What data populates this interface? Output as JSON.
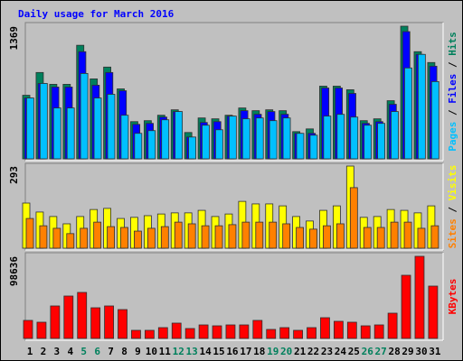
{
  "chart_data": [
    {
      "type": "bar",
      "title": "Daily usage for March 2016",
      "categories": [
        "1",
        "2",
        "3",
        "4",
        "5",
        "6",
        "7",
        "8",
        "9",
        "10",
        "11",
        "12",
        "13",
        "14",
        "15",
        "16",
        "17",
        "18",
        "19",
        "20",
        "21",
        "22",
        "23",
        "24",
        "25",
        "26",
        "27",
        "28",
        "29",
        "30",
        "31"
      ],
      "category_colors": [
        "#000000",
        "#000000",
        "#000000",
        "#000000",
        "#00805C",
        "#00805C",
        "#000000",
        "#000000",
        "#000000",
        "#000000",
        "#000000",
        "#00805C",
        "#00805C",
        "#000000",
        "#000000",
        "#000000",
        "#000000",
        "#000000",
        "#00805C",
        "#00805C",
        "#000000",
        "#000000",
        "#000000",
        "#000000",
        "#000000",
        "#00805C",
        "#00805C",
        "#000000",
        "#000000",
        "#000000",
        "#000000"
      ],
      "legend_separator": "/",
      "ylim": [
        0,
        1369
      ],
      "yticks": [
        1369
      ],
      "series": [
        {
          "name": "Hits",
          "color": "#00805C",
          "values": [
            656,
            891,
            769,
            769,
            1172,
            825,
            947,
            722,
            384,
            394,
            450,
            506,
            272,
            422,
            413,
            450,
            525,
            497,
            506,
            497,
            281,
            309,
            750,
            750,
            713,
            394,
            413,
            600,
            1369,
            1106,
            994
          ]
        },
        {
          "name": "Files",
          "color": "#0000FF",
          "values": [
            628,
            778,
            741,
            741,
            1106,
            760,
            891,
            703,
            356,
            366,
            431,
            488,
            225,
            375,
            384,
            441,
            497,
            460,
            488,
            460,
            263,
            263,
            731,
            731,
            675,
            366,
            384,
            563,
            1313,
            1078,
            956
          ]
        },
        {
          "name": "Pages",
          "color": "#00C0FF",
          "values": [
            628,
            778,
            525,
            525,
            881,
            628,
            666,
            450,
            263,
            291,
            403,
            488,
            225,
            347,
            300,
            441,
            413,
            422,
            394,
            422,
            263,
            244,
            441,
            459,
            431,
            347,
            366,
            488,
            938,
            1078,
            797
          ]
        }
      ]
    },
    {
      "type": "bar",
      "ylim": [
        0,
        293
      ],
      "yticks": [
        293
      ],
      "series": [
        {
          "name": "Visits",
          "color": "#FFFF00",
          "values": [
            161,
            129,
            113,
            87,
            113,
            138,
            142,
            106,
            110,
            116,
            122,
            126,
            126,
            135,
            113,
            122,
            167,
            158,
            158,
            151,
            113,
            97,
            135,
            151,
            293,
            110,
            113,
            138,
            135,
            126,
            151
          ]
        },
        {
          "name": "Sites",
          "color": "#FF8000",
          "values": [
            106,
            80,
            71,
            52,
            71,
            93,
            77,
            74,
            61,
            71,
            77,
            93,
            87,
            80,
            80,
            84,
            93,
            93,
            93,
            87,
            74,
            68,
            80,
            87,
            216,
            74,
            74,
            93,
            93,
            71,
            80
          ]
        }
      ]
    },
    {
      "type": "bar",
      "ylim": [
        0,
        98636
      ],
      "yticks": [
        98636
      ],
      "series": [
        {
          "name": "KBytes",
          "color": "#FF0000",
          "values": [
            21680,
            19512,
            39024,
            50948,
            55284,
            36856,
            39024,
            34688,
            9756,
            9756,
            13008,
            18428,
            11924,
            16260,
            15176,
            16260,
            16260,
            21680,
            10840,
            13008,
            9756,
            13008,
            24932,
            20596,
            19512,
            15176,
            16260,
            30352,
            75880,
            98636,
            62872
          ]
        }
      ]
    }
  ]
}
